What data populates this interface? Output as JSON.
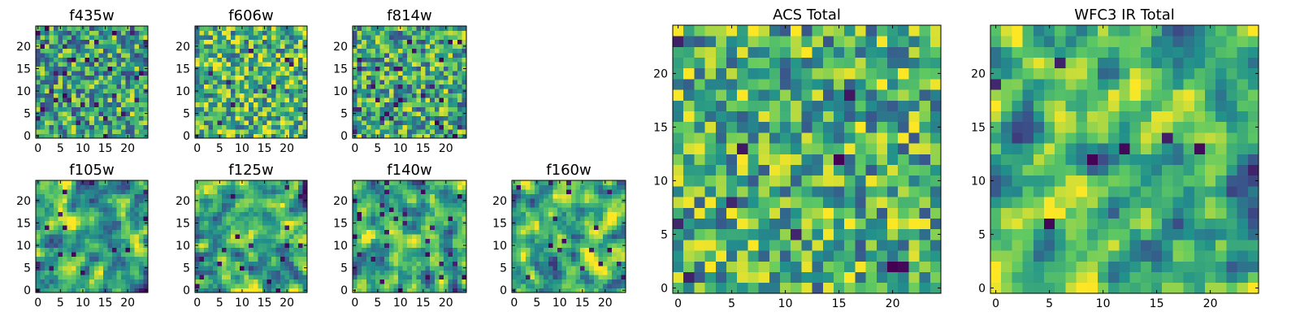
{
  "figure": {
    "colormap": "viridis",
    "colormap_stops": [
      "#440154",
      "#3b528b",
      "#21918c",
      "#5ec962",
      "#fde725"
    ],
    "value_range": [
      0,
      1
    ]
  },
  "chart_data": [
    {
      "type": "heatmap",
      "title": "f435w",
      "grid": [
        25,
        25
      ],
      "xticks": [
        0,
        5,
        10,
        15,
        20
      ],
      "yticks": [
        0,
        5,
        10,
        15,
        20
      ],
      "xlim": [
        0,
        24
      ],
      "ylim": [
        0,
        24
      ],
      "seed": 11,
      "smooth": 0,
      "vlow_frac": 0.05,
      "bias": 0.58
    },
    {
      "type": "heatmap",
      "title": "f606w",
      "grid": [
        25,
        25
      ],
      "xticks": [
        0,
        5,
        10,
        15,
        20
      ],
      "yticks": [
        0,
        5,
        10,
        15,
        20
      ],
      "xlim": [
        0,
        24
      ],
      "ylim": [
        0,
        24
      ],
      "seed": 23,
      "smooth": 0,
      "vlow_frac": 0.02,
      "bias": 0.66
    },
    {
      "type": "heatmap",
      "title": "f814w",
      "grid": [
        25,
        25
      ],
      "xticks": [
        0,
        5,
        10,
        15,
        20
      ],
      "yticks": [
        0,
        5,
        10,
        15,
        20
      ],
      "xlim": [
        0,
        24
      ],
      "ylim": [
        0,
        24
      ],
      "seed": 37,
      "smooth": 0,
      "vlow_frac": 0.04,
      "bias": 0.6
    },
    {
      "type": "heatmap",
      "title": "f105w",
      "grid": [
        25,
        25
      ],
      "xticks": [
        0,
        5,
        10,
        15,
        20
      ],
      "yticks": [
        0,
        5,
        10,
        15,
        20
      ],
      "xlim": [
        0,
        24
      ],
      "ylim": [
        0,
        24
      ],
      "seed": 41,
      "smooth": 1,
      "vlow_frac": 0.03,
      "bias": 0.58
    },
    {
      "type": "heatmap",
      "title": "f125w",
      "grid": [
        25,
        25
      ],
      "xticks": [
        0,
        5,
        10,
        15,
        20
      ],
      "yticks": [
        0,
        5,
        10,
        15,
        20
      ],
      "xlim": [
        0,
        24
      ],
      "ylim": [
        0,
        24
      ],
      "seed": 53,
      "smooth": 1,
      "vlow_frac": 0.02,
      "bias": 0.62
    },
    {
      "type": "heatmap",
      "title": "f140w",
      "grid": [
        25,
        25
      ],
      "xticks": [
        0,
        5,
        10,
        15,
        20
      ],
      "yticks": [
        0,
        5,
        10,
        15,
        20
      ],
      "xlim": [
        0,
        24
      ],
      "ylim": [
        0,
        24
      ],
      "seed": 67,
      "smooth": 1,
      "vlow_frac": 0.04,
      "bias": 0.6
    },
    {
      "type": "heatmap",
      "title": "f160w",
      "grid": [
        25,
        25
      ],
      "xticks": [
        0,
        5,
        10,
        15,
        20
      ],
      "yticks": [
        0,
        5,
        10,
        15,
        20
      ],
      "xlim": [
        0,
        24
      ],
      "ylim": [
        0,
        24
      ],
      "seed": 79,
      "smooth": 1,
      "vlow_frac": 0.02,
      "bias": 0.64
    },
    {
      "type": "heatmap",
      "title": "ACS Total",
      "grid": [
        25,
        25
      ],
      "xticks": [
        0,
        5,
        10,
        15,
        20
      ],
      "yticks": [
        0,
        5,
        10,
        15,
        20
      ],
      "xlim": [
        0,
        24
      ],
      "ylim": [
        0,
        24
      ],
      "seed": 97,
      "smooth": 0,
      "vlow_frac": 0.02,
      "bias": 0.64
    },
    {
      "type": "heatmap",
      "title": "WFC3 IR Total",
      "grid": [
        25,
        25
      ],
      "xticks": [
        0,
        5,
        10,
        15,
        20
      ],
      "yticks": [
        0,
        5,
        10,
        15,
        20
      ],
      "xlim": [
        0,
        24
      ],
      "ylim": [
        0,
        24
      ],
      "seed": 113,
      "smooth": 1,
      "vlow_frac": 0.015,
      "bias": 0.66
    }
  ]
}
